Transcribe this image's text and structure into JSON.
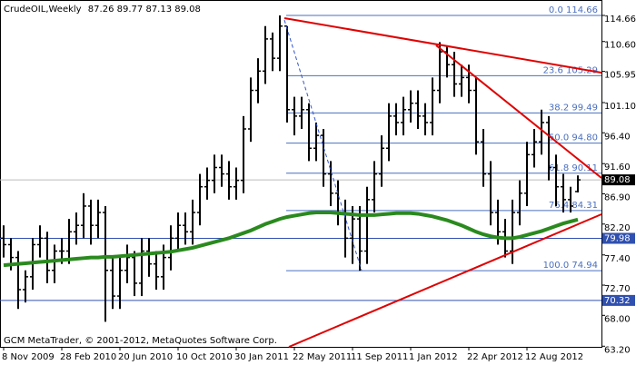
{
  "chart_data": {
    "type": "ohlc",
    "title": "CrudeOIL,Weekly",
    "footer": "GCM MetaTrader, © 2001-2012, MetaQuotes Software Corp.",
    "categories": [
      "8 Nov 2009",
      null,
      null,
      null,
      null,
      null,
      null,
      null,
      "28 Feb 2010",
      null,
      null,
      null,
      null,
      null,
      null,
      null,
      "20 Jun 2010",
      null,
      null,
      null,
      null,
      null,
      null,
      null,
      "10 Oct 2010",
      null,
      null,
      null,
      null,
      null,
      null,
      null,
      "30 Jan 2011",
      null,
      null,
      null,
      null,
      null,
      null,
      null,
      "22 May 2011",
      null,
      null,
      null,
      null,
      null,
      null,
      null,
      "11 Sep 2011",
      null,
      null,
      null,
      null,
      null,
      null,
      null,
      "1 Jan 2012",
      null,
      null,
      null,
      null,
      null,
      null,
      null,
      "22 Apr 2012",
      null,
      null,
      null,
      null,
      null,
      null,
      null,
      "12 Aug 2012",
      null,
      null,
      null,
      null,
      null,
      null,
      null
    ],
    "open": [
      80,
      79,
      77,
      72,
      74,
      79,
      80,
      75,
      78,
      78,
      81,
      82,
      85,
      82,
      84,
      75,
      71,
      75,
      77,
      73,
      78,
      76,
      74,
      77,
      80,
      82,
      81,
      84,
      88,
      89,
      91,
      90,
      88,
      89,
      97,
      103,
      106,
      111,
      108,
      113,
      100,
      99,
      100,
      94,
      96,
      90,
      87,
      84,
      80,
      83,
      78,
      86,
      90,
      94,
      99,
      98,
      100,
      101,
      99,
      98,
      103,
      109,
      107,
      104,
      105,
      103,
      95,
      90,
      84,
      81,
      78,
      84,
      87,
      93,
      95,
      98,
      91,
      88,
      86,
      87.26
    ],
    "high": [
      82,
      80,
      78,
      75,
      80,
      82,
      81,
      79,
      80,
      83,
      84,
      87,
      86,
      86,
      85,
      77,
      77,
      79,
      78,
      80,
      80,
      78,
      79,
      82,
      84,
      84,
      86,
      90,
      91,
      93,
      93,
      92,
      91,
      99,
      105,
      108,
      113,
      112,
      114.66,
      113,
      102,
      102,
      101,
      98,
      97,
      92,
      89,
      86,
      85,
      85,
      88,
      92,
      96,
      101,
      101,
      102,
      103,
      103,
      101,
      105,
      110.5,
      110,
      109,
      107,
      107,
      105,
      97,
      92,
      86,
      83,
      86,
      89,
      95,
      97,
      100,
      99,
      93,
      90,
      88,
      89.77
    ],
    "low": [
      77,
      75,
      69,
      70,
      72,
      77,
      73,
      73,
      76,
      76,
      79,
      80,
      79,
      80,
      67,
      69,
      69,
      73,
      71,
      71,
      74,
      72,
      72,
      75,
      78,
      79,
      79,
      82,
      86,
      87,
      88,
      86,
      86,
      87,
      95,
      101,
      104,
      106,
      106,
      98,
      96,
      97,
      92,
      92,
      88,
      85,
      82,
      77,
      76,
      74.94,
      76,
      84,
      88,
      92,
      96,
      96,
      98,
      97,
      96,
      96,
      101,
      105,
      102,
      102,
      101,
      93,
      88,
      82,
      79,
      77,
      76,
      82,
      85,
      91,
      93,
      89,
      85,
      84,
      84,
      87.13
    ],
    "close": [
      79,
      77,
      72,
      74,
      79,
      80,
      75,
      78,
      78,
      81,
      82,
      85,
      82,
      84,
      75,
      71,
      75,
      77,
      73,
      78,
      76,
      74,
      77,
      80,
      82,
      81,
      84,
      88,
      89,
      91,
      90,
      88,
      89,
      97,
      103,
      106,
      111,
      108,
      113,
      100,
      99,
      100,
      94,
      96,
      90,
      87,
      84,
      80,
      83,
      78,
      86,
      90,
      94,
      99,
      98,
      100,
      101,
      99,
      98,
      103,
      109,
      107,
      104,
      105,
      103,
      95,
      90,
      84,
      81,
      78,
      84,
      87,
      93,
      95,
      98,
      91,
      88,
      86,
      85,
      89.08
    ],
    "color": "#000000",
    "moving_average": {
      "color": "#2a8a1e",
      "values": [
        75.8,
        75.9,
        76.0,
        76.1,
        76.2,
        76.3,
        76.4,
        76.5,
        76.6,
        76.7,
        76.8,
        76.9,
        77.0,
        77.0,
        77.1,
        77.1,
        77.2,
        77.3,
        77.4,
        77.5,
        77.6,
        77.7,
        77.8,
        77.9,
        78.1,
        78.3,
        78.5,
        78.8,
        79.1,
        79.4,
        79.7,
        80.0,
        80.4,
        80.8,
        81.2,
        81.7,
        82.2,
        82.6,
        83.0,
        83.3,
        83.5,
        83.7,
        83.9,
        84.0,
        84.0,
        84.0,
        83.9,
        83.8,
        83.7,
        83.6,
        83.6,
        83.6,
        83.7,
        83.8,
        83.9,
        83.9,
        83.9,
        83.8,
        83.6,
        83.4,
        83.1,
        82.8,
        82.4,
        82.0,
        81.5,
        81.0,
        80.6,
        80.3,
        80.1,
        80.0,
        80.0,
        80.2,
        80.5,
        80.8,
        81.1,
        81.5,
        81.9,
        82.3,
        82.6,
        82.9
      ]
    },
    "ylim": [
      63.1,
      117.06
    ],
    "yticks": [
      114.66,
      {
        "value": 110.6,
        "label": "110.60"
      },
      105.95,
      {
        "value": 101.1,
        "label": "101.10"
      },
      {
        "value": 96.4,
        "label": "96.40"
      },
      {
        "value": 91.6,
        "label": "91.60"
      },
      {
        "value": 86.9,
        "label": "86.90"
      },
      {
        "value": 82.2,
        "label": "82.20"
      },
      {
        "value": 77.4,
        "label": "77.40"
      },
      {
        "value": 72.7,
        "label": "72.70"
      },
      {
        "value": 68,
        "label": "68.00"
      },
      {
        "value": 63.2,
        "label": "63.20"
      }
    ],
    "price_lines": {
      "color": "#3050b0",
      "values": [
        79.98,
        70.32
      ]
    },
    "fibonacci": {
      "color": "#4a6fbf",
      "levels": [
        {
          "value": 114.66,
          "label": "0.0 114.66"
        },
        {
          "value": 105.29,
          "label": "23.6 105.29"
        },
        {
          "value": 99.49,
          "label": "38.2 99.49"
        },
        {
          "value": 94.8,
          "label": "50.0 94.80"
        },
        {
          "value": 90.11,
          "label": "61.8 90.11"
        },
        {
          "value": 84.31,
          "label": "76.4 84.31"
        },
        {
          "value": 74.94,
          "label": "100.0 74.94"
        }
      ]
    }
  }
}
